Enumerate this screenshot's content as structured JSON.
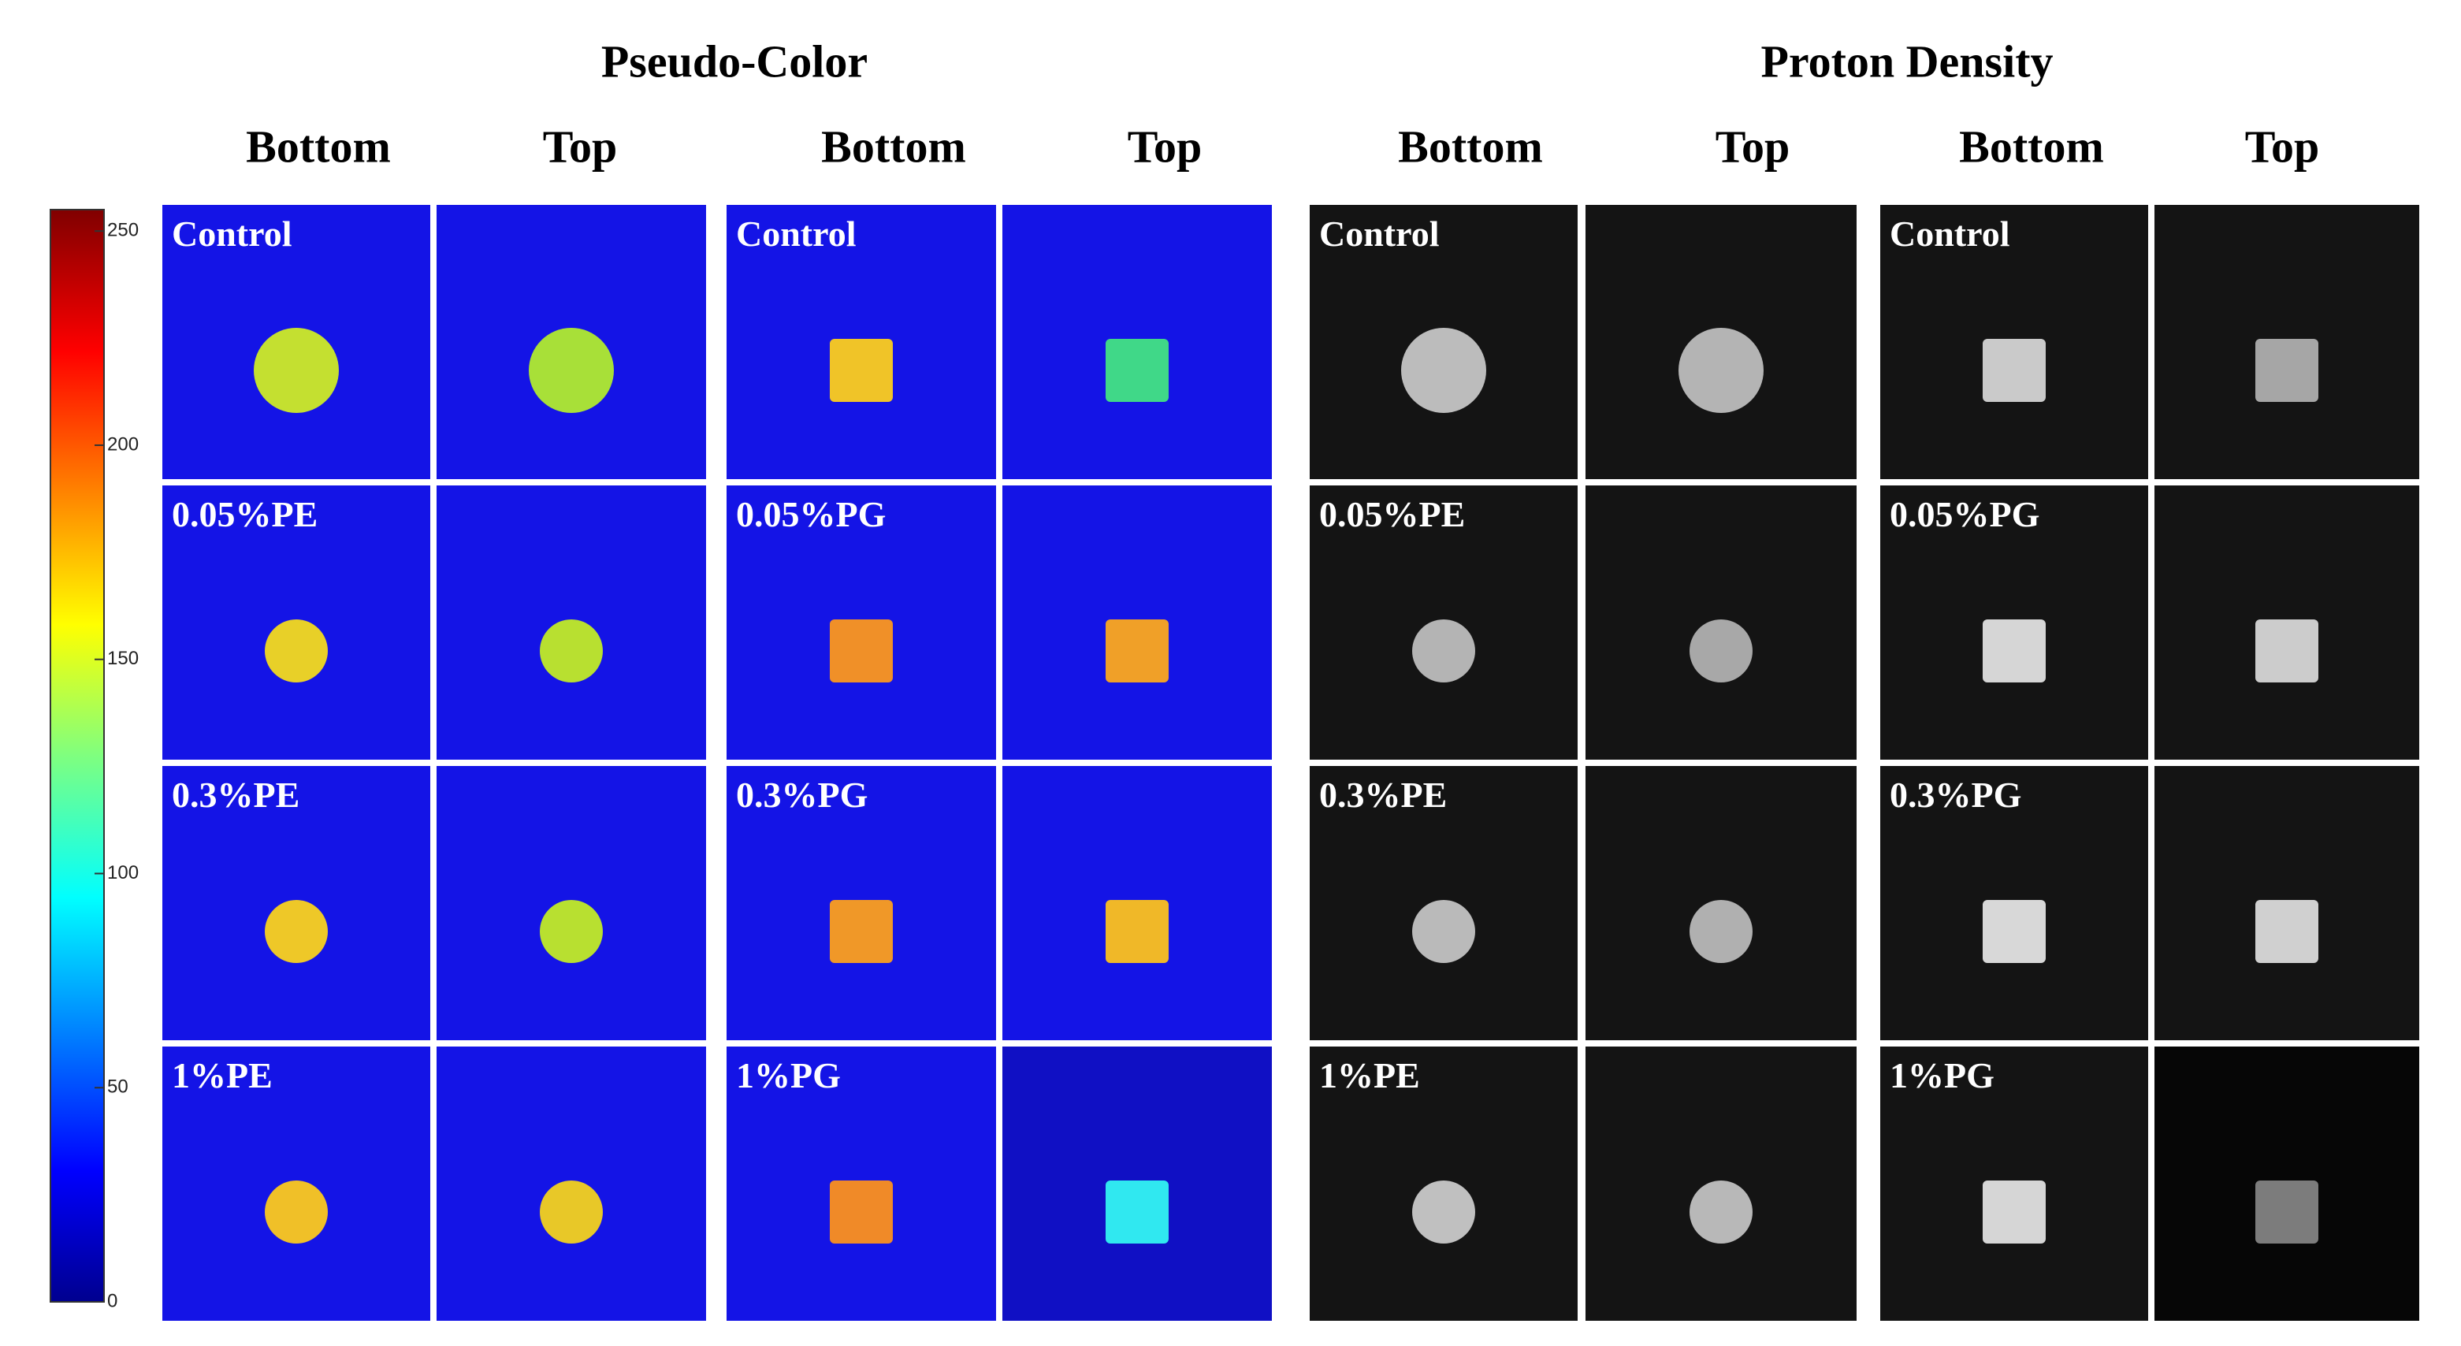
{
  "sections": [
    {
      "title": "Pseudo-Color",
      "columns": [
        "Bottom",
        "Top",
        "Bottom",
        "Top"
      ]
    },
    {
      "title": "Proton Density",
      "columns": [
        "Bottom",
        "Top",
        "Bottom",
        "Top"
      ]
    }
  ],
  "row_labels": [
    [
      "Control",
      "0.05%PE",
      "0.3%PE",
      "1%PE"
    ],
    [
      "Control",
      "0.05%PG",
      "0.3%PG",
      "1%PG"
    ],
    [
      "Control",
      "0.05%PE",
      "0.3%PE",
      "1%PE"
    ],
    [
      "Control",
      "0.05%PG",
      "0.3%PG",
      "1%PG"
    ]
  ],
  "colorbar": {
    "lim": [
      0,
      255
    ],
    "ticks": [
      0,
      50,
      100,
      150,
      200,
      250
    ]
  }
}
